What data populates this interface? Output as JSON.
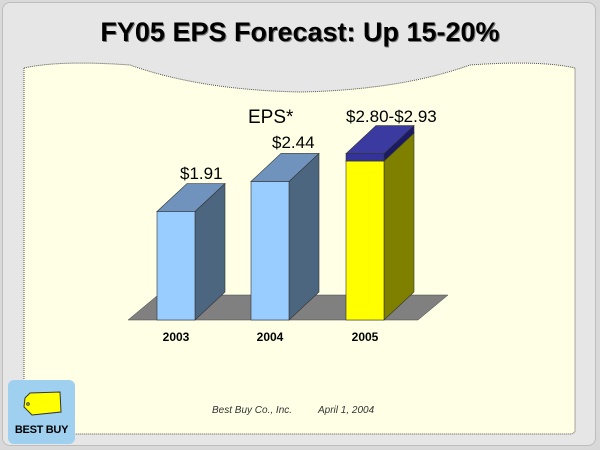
{
  "slide": {
    "title": "FY05 EPS Forecast: Up 15-20%",
    "footer_company": "Best Buy Co., Inc.",
    "footer_date": "April 1, 2004",
    "logo_text": "BEST BUY"
  },
  "chart_data": {
    "type": "bar",
    "title": "EPS*",
    "categories": [
      "2003",
      "2004",
      "2005"
    ],
    "values": [
      1.91,
      2.44,
      2.93
    ],
    "value_labels": [
      "$1.91",
      "$2.44",
      "$2.80-$2.93"
    ],
    "range_2005": [
      2.8,
      2.93
    ],
    "ylim": [
      0,
      3.2
    ],
    "colors": {
      "actual": "#99ccff",
      "forecast": "#ffff00",
      "range": "#333399"
    }
  }
}
